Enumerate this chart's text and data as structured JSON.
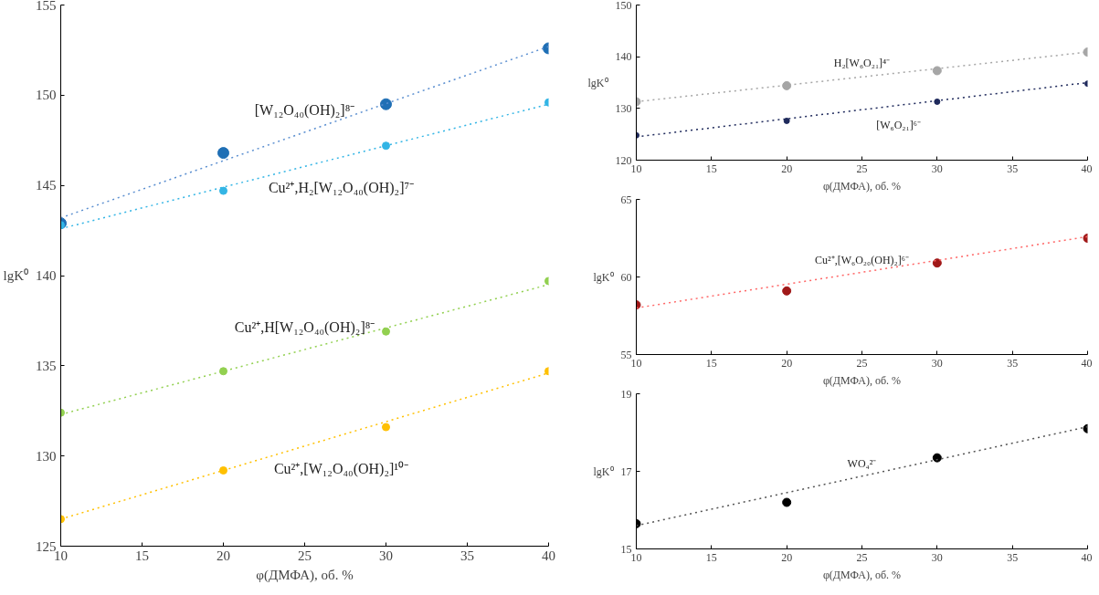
{
  "chart_data": [
    {
      "type": "scatter",
      "xlabel": "φ(ДМФА), об. %",
      "ylabel": "lgK⁰",
      "xlim": [
        10,
        40
      ],
      "ylim": [
        125,
        155
      ],
      "xticks": [
        10,
        15,
        20,
        25,
        30,
        35,
        40
      ],
      "yticks": [
        125,
        130,
        135,
        140,
        145,
        150,
        155
      ],
      "marker": "circle",
      "series": [
        {
          "color": "#1f6fb5",
          "x": [
            10,
            20,
            30,
            40
          ],
          "values": [
            142.9,
            146.8,
            149.5,
            152.6
          ]
        },
        {
          "color": "#33b5e5",
          "x": [
            10,
            20,
            30,
            40
          ],
          "values": [
            142.8,
            144.7,
            147.2,
            149.6
          ]
        },
        {
          "color": "#92d050",
          "x": [
            10,
            20,
            30,
            40
          ],
          "values": [
            132.4,
            134.7,
            136.9,
            139.7
          ]
        },
        {
          "color": "#ffc000",
          "x": [
            10,
            20,
            30,
            40
          ],
          "values": [
            126.5,
            129.2,
            131.6,
            134.7
          ]
        },
        {
          "type": "line",
          "marker": "none",
          "color": "#5b8fd0",
          "line_style": "dotted",
          "x": [
            10,
            40
          ],
          "values": [
            143.2,
            152.7
          ]
        },
        {
          "type": "line",
          "marker": "none",
          "color": "#33b5e5",
          "line_style": "dotted",
          "x": [
            10,
            40
          ],
          "values": [
            142.6,
            149.5
          ]
        },
        {
          "type": "line",
          "marker": "none",
          "color": "#92d050",
          "line_style": "dotted",
          "x": [
            10,
            40
          ],
          "values": [
            132.3,
            139.5
          ]
        },
        {
          "type": "line",
          "marker": "none",
          "color": "#ffc000",
          "line_style": "dotted",
          "x": [
            10,
            40
          ],
          "values": [
            126.5,
            134.6
          ]
        }
      ],
      "annotations": [
        "[W₁₂O₄₀(OH)₂]⁸⁻",
        "Cu²⁺,H₂[W₁₂O₄₀(OH)₂]⁷⁻",
        "Cu²⁺,H[W₁₂O₄₀(OH)₂]⁸⁻",
        "Cu²⁺,[W₁₂O₄₀(OH)₂]¹⁰⁻"
      ]
    },
    {
      "type": "scatter",
      "xlabel": "φ(ДМФА), об. %",
      "ylabel": "lgK⁰",
      "xlim": [
        10,
        40
      ],
      "ylim": [
        120,
        150
      ],
      "xticks": [
        10,
        15,
        20,
        25,
        30,
        35,
        40
      ],
      "yticks": [
        120,
        130,
        140,
        150
      ],
      "marker": "circle",
      "series": [
        {
          "color": "#a6a6a6",
          "x": [
            10,
            20,
            30,
            40
          ],
          "values": [
            131.3,
            134.4,
            137.3,
            140.9
          ]
        },
        {
          "color": "#1f2a5c",
          "x": [
            10,
            20,
            30,
            40
          ],
          "values": [
            124.8,
            127.6,
            131.3,
            134.8
          ]
        },
        {
          "type": "line",
          "marker": "none",
          "color": "#a6a6a6",
          "line_style": "dotted",
          "x": [
            10,
            40
          ],
          "values": [
            131.3,
            140.9
          ]
        },
        {
          "type": "line",
          "marker": "none",
          "color": "#1f2a5c",
          "line_style": "dotted",
          "x": [
            10,
            40
          ],
          "values": [
            124.5,
            135.0
          ]
        }
      ],
      "annotations": [
        "H₂[W₆O₂₁]⁴⁻",
        "[W₆O₂₁]⁶⁻"
      ]
    },
    {
      "type": "scatter",
      "xlabel": "φ(ДМФА), об. %",
      "ylabel": "lgK⁰",
      "xlim": [
        10,
        40
      ],
      "ylim": [
        55,
        65
      ],
      "xticks": [
        10,
        15,
        20,
        25,
        30,
        35,
        40
      ],
      "yticks": [
        55,
        60,
        65
      ],
      "marker": "circle",
      "series": [
        {
          "color": "#a01818",
          "x": [
            10,
            20,
            30,
            40
          ],
          "values": [
            58.2,
            59.1,
            60.9,
            62.5
          ]
        },
        {
          "type": "line",
          "marker": "none",
          "color": "#ff6666",
          "line_style": "dotted",
          "x": [
            10,
            40
          ],
          "values": [
            58.0,
            62.6
          ]
        }
      ],
      "annotations": [
        "Cu²⁺,[W₆O₂₀(OH)₂]⁶⁻"
      ]
    },
    {
      "type": "scatter",
      "xlabel": "φ(ДМФА), об. %",
      "ylabel": "lgK⁰",
      "xlim": [
        10,
        40
      ],
      "ylim": [
        15,
        19
      ],
      "xticks": [
        10,
        15,
        20,
        25,
        30,
        35,
        40
      ],
      "yticks": [
        15,
        17,
        19
      ],
      "marker": "circle",
      "series": [
        {
          "color": "#000000",
          "x": [
            10,
            20,
            30,
            40
          ],
          "values": [
            15.65,
            16.2,
            17.35,
            18.1
          ]
        },
        {
          "type": "line",
          "marker": "none",
          "color": "#555555",
          "line_style": "dotted",
          "x": [
            10,
            40
          ],
          "values": [
            15.6,
            18.15
          ]
        }
      ],
      "annotations": [
        "WO₄²⁻"
      ]
    }
  ]
}
